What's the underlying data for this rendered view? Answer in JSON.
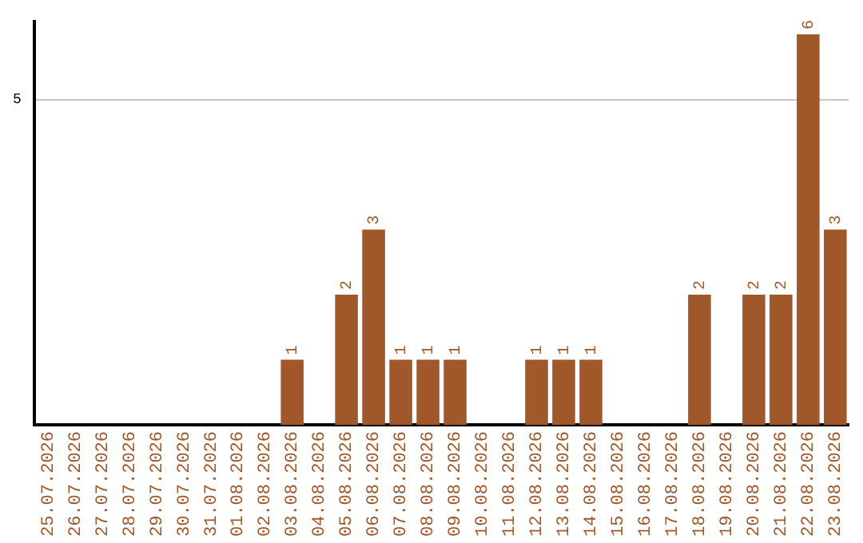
{
  "chart_data": {
    "type": "bar",
    "categories": [
      "25.07.2026",
      "26.07.2026",
      "27.07.2026",
      "28.07.2026",
      "29.07.2026",
      "30.07.2026",
      "31.07.2026",
      "01.08.2026",
      "02.08.2026",
      "03.08.2026",
      "04.08.2026",
      "05.08.2026",
      "06.08.2026",
      "07.08.2026",
      "08.08.2026",
      "09.08.2026",
      "10.08.2026",
      "11.08.2026",
      "12.08.2026",
      "13.08.2026",
      "14.08.2026",
      "15.08.2026",
      "16.08.2026",
      "17.08.2026",
      "18.08.2026",
      "19.08.2026",
      "20.08.2026",
      "21.08.2026",
      "22.08.2026",
      "23.08.2026"
    ],
    "values": [
      0,
      0,
      0,
      0,
      0,
      0,
      0,
      0,
      0,
      1,
      0,
      2,
      3,
      1,
      1,
      1,
      0,
      0,
      1,
      1,
      1,
      0,
      0,
      0,
      2,
      0,
      2,
      2,
      6,
      3
    ],
    "value_labels": [
      null,
      null,
      null,
      null,
      null,
      null,
      null,
      null,
      null,
      "1",
      null,
      "2",
      "3",
      "1",
      "1",
      "1",
      null,
      null,
      "1",
      "1",
      "1",
      null,
      null,
      null,
      "2",
      null,
      "2",
      "2",
      "6",
      "3"
    ],
    "color": "#a0572a",
    "ylim": [
      0,
      6.2
    ],
    "yticks": [
      5
    ],
    "grid": "y",
    "legend": false
  }
}
